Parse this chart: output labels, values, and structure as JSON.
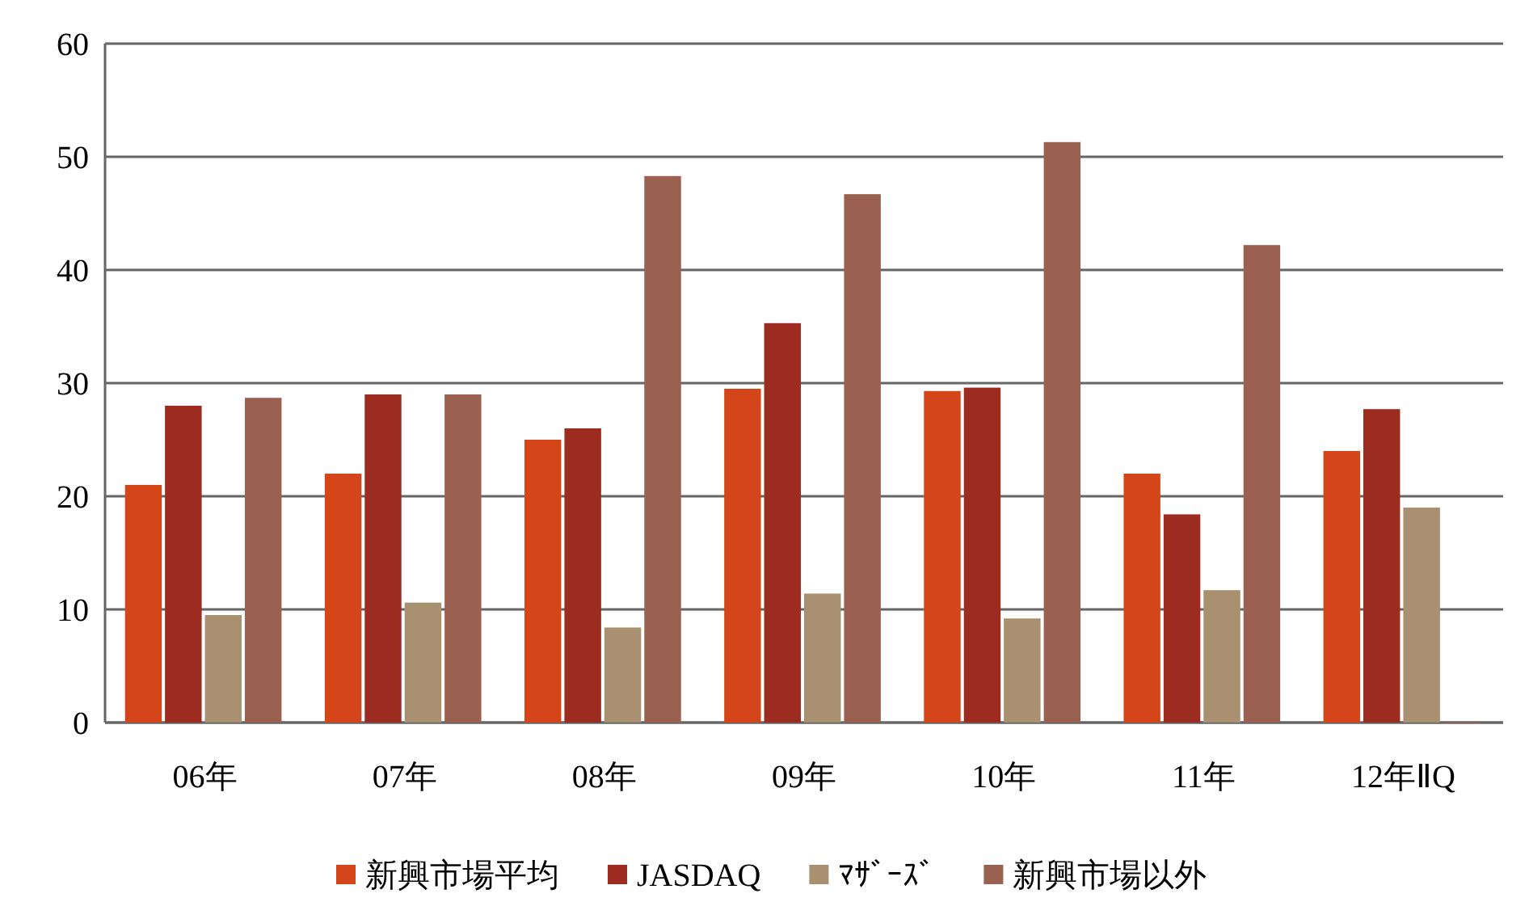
{
  "chart_data": {
    "type": "bar",
    "categories": [
      "06年",
      "07年",
      "08年",
      "09年",
      "10年",
      "11年",
      "12年ⅡQ"
    ],
    "series": [
      {
        "name": "新興市場平均",
        "color": "#d4461a",
        "values": [
          21,
          22,
          25,
          29.5,
          29.3,
          22,
          24
        ]
      },
      {
        "name": "JASDAQ",
        "color": "#9c2b20",
        "values": [
          28,
          29,
          26,
          35.3,
          29.6,
          18.4,
          27.7
        ]
      },
      {
        "name": "ﾏｻﾞｰｽﾞ",
        "color": "#a89070",
        "values": [
          9.5,
          10.6,
          8.4,
          11.4,
          9.2,
          11.7,
          19
        ]
      },
      {
        "name": "新興市場以外",
        "color": "#9a6050",
        "values": [
          28.7,
          29,
          48.3,
          46.7,
          51.3,
          42.2,
          0
        ]
      }
    ],
    "ylim": [
      0,
      60
    ],
    "yticks": [
      0,
      10,
      20,
      30,
      40,
      50,
      60
    ],
    "grid": "y",
    "legend": "bottom"
  }
}
